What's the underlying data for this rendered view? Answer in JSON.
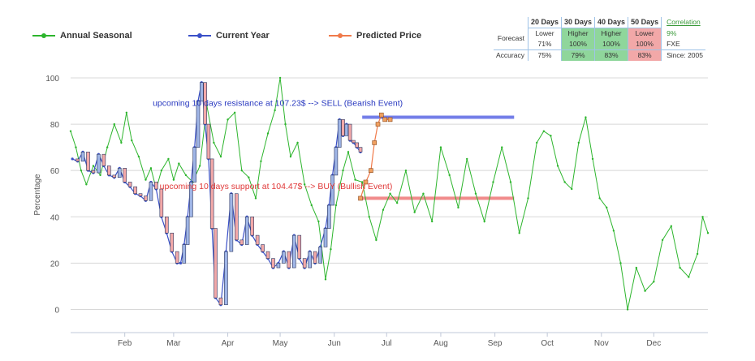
{
  "legend": {
    "annual": "Annual Seasonal",
    "current": "Current Year",
    "predicted": "Predicted Price"
  },
  "stats_table": {
    "headers": [
      "20 Days",
      "30 Days",
      "40 Days",
      "50 Days"
    ],
    "forecast_label": "Forecast",
    "accuracy_label": "Accuracy",
    "forecast": [
      {
        "dir": "Lower",
        "pct": "71%",
        "color": "none"
      },
      {
        "dir": "Higher",
        "pct": "100%",
        "color": "green"
      },
      {
        "dir": "Higher",
        "pct": "100%",
        "color": "green"
      },
      {
        "dir": "Lower",
        "pct": "100%",
        "color": "red"
      }
    ],
    "accuracy": [
      {
        "pct": "75%",
        "color": "none"
      },
      {
        "pct": "79%",
        "color": "green"
      },
      {
        "pct": "83%",
        "color": "green"
      },
      {
        "pct": "83%",
        "color": "red"
      }
    ],
    "correlation_label": "Correlation",
    "correlation_value": "9%",
    "symbol": "FXE",
    "since": "Since: 2005"
  },
  "chart_data": {
    "type": "line",
    "ylabel": "Percentage",
    "ylim": [
      -10,
      100
    ],
    "yticks": [
      0,
      20,
      40,
      60,
      80,
      100
    ],
    "x_months": [
      "Feb",
      "Mar",
      "Apr",
      "May",
      "Jun",
      "Jul",
      "Aug",
      "Sep",
      "Oct",
      "Nov",
      "Dec"
    ],
    "x_domain": [
      1,
      366
    ],
    "month_tick_days": [
      32,
      60,
      91,
      121,
      152,
      182,
      213,
      244,
      274,
      305,
      335
    ],
    "colors": {
      "annual": "#2db52d",
      "current": "#3a50c8",
      "predicted": "#f07a4a",
      "resistance": "#6470e6",
      "support": "#f07f7f",
      "resistance_text": "#2a3ac0",
      "support_text": "#e03838"
    },
    "annotations": [
      {
        "text": "upcoming 10 days resistance at 107.23$ --> SELL (Bearish Event)",
        "day": 48,
        "y": 88
      },
      {
        "text": "upcoming 10 days support at 104.47$ --> BUY (Bullish Event)",
        "day": 52,
        "y": 52
      }
    ],
    "resistance_line": {
      "y": 83,
      "start": 168,
      "end": 255
    },
    "support_line": {
      "y": 48,
      "start": 168,
      "end": 255
    },
    "series": [
      {
        "name": "Annual Seasonal",
        "x": [
          1,
          4,
          7,
          10,
          14,
          18,
          22,
          26,
          30,
          33,
          36,
          40,
          44,
          47,
          50,
          53,
          57,
          60,
          63,
          67,
          71,
          75,
          79,
          83,
          87,
          91,
          95,
          99,
          103,
          107,
          110,
          114,
          118,
          121,
          124,
          127,
          131,
          135,
          139,
          143,
          147,
          150,
          153,
          157,
          160,
          164,
          168,
          172,
          176,
          180,
          184,
          188,
          193,
          198,
          203,
          208,
          213,
          218,
          223,
          228,
          233,
          238,
          243,
          248,
          253,
          258,
          263,
          268,
          272,
          276,
          280,
          284,
          288,
          292,
          296,
          300,
          304,
          308,
          312,
          316,
          320,
          325,
          330,
          335,
          340,
          345,
          350,
          355,
          360,
          363,
          366
        ],
        "values": [
          77,
          70,
          60,
          54,
          62,
          58,
          70,
          80,
          72,
          85,
          73,
          66,
          56,
          61,
          52,
          60,
          65,
          56,
          63,
          58,
          55,
          62,
          88,
          72,
          66,
          82,
          85,
          60,
          57,
          48,
          64,
          76,
          86,
          100,
          80,
          66,
          72,
          54,
          45,
          38,
          13,
          26,
          45,
          60,
          68,
          56,
          55,
          40,
          30,
          43,
          50,
          46,
          60,
          42,
          50,
          38,
          70,
          58,
          44,
          65,
          50,
          38,
          55,
          70,
          55,
          33,
          48,
          72,
          77,
          75,
          62,
          55,
          52,
          72,
          83,
          65,
          48,
          44,
          34,
          20,
          0,
          18,
          8,
          12,
          30,
          36,
          18,
          14,
          24,
          40,
          33
        ]
      },
      {
        "name": "Current Year",
        "x": [
          2,
          5,
          8,
          11,
          14,
          17,
          20,
          23,
          26,
          29,
          32,
          35,
          38,
          41,
          44,
          47,
          50,
          53,
          56,
          59,
          62,
          64,
          66,
          68,
          70,
          72,
          74,
          76,
          78,
          80,
          82,
          84,
          87,
          90,
          93,
          96,
          99,
          102,
          105,
          108,
          111,
          114,
          117,
          120,
          123,
          126,
          129,
          132,
          135,
          138,
          141,
          144,
          147,
          149,
          151,
          153,
          155,
          157,
          159,
          161,
          163,
          165,
          167
        ],
        "values": [
          65,
          64,
          68,
          60,
          59,
          67,
          62,
          58,
          57,
          61,
          55,
          53,
          50,
          49,
          47,
          55,
          52,
          40,
          33,
          25,
          20,
          20,
          28,
          40,
          55,
          70,
          90,
          98,
          80,
          65,
          35,
          5,
          2,
          25,
          50,
          30,
          28,
          40,
          32,
          28,
          25,
          22,
          18,
          20,
          25,
          18,
          32,
          22,
          18,
          25,
          20,
          27,
          35,
          45,
          58,
          70,
          82,
          75,
          80,
          73,
          72,
          70,
          68
        ]
      },
      {
        "name": "Predicted Price",
        "x": [
          167,
          170,
          173,
          175,
          177,
          179,
          181,
          184
        ],
        "values": [
          48,
          55,
          60,
          72,
          80,
          84,
          82,
          82
        ]
      }
    ]
  }
}
